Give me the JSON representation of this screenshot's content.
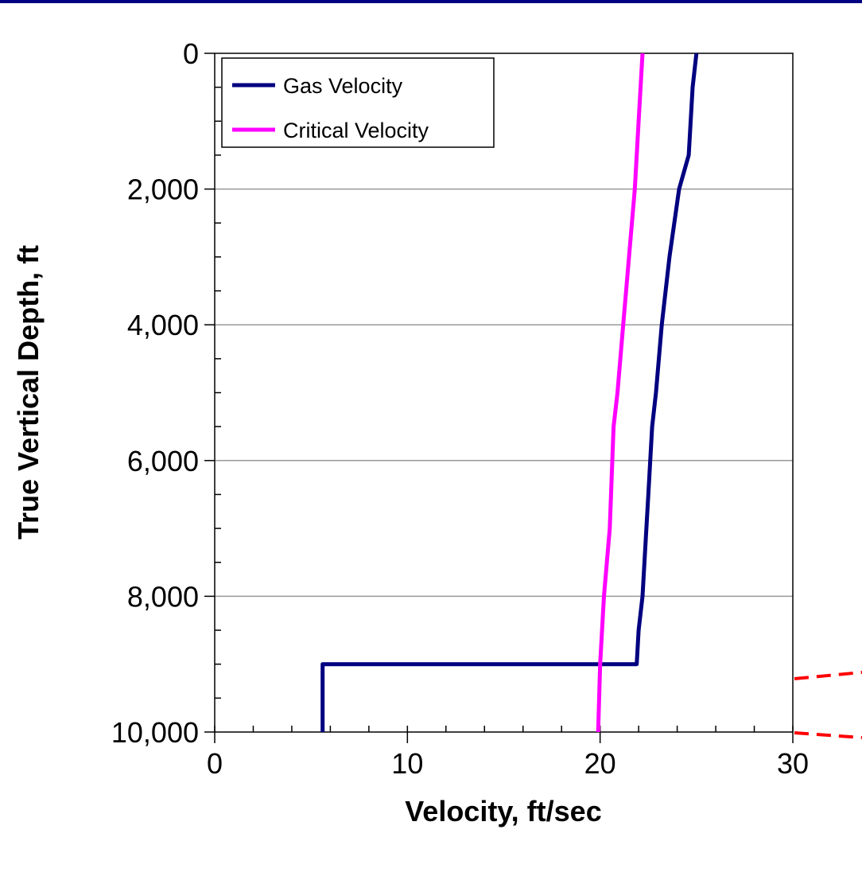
{
  "chart_data": {
    "type": "line",
    "xlabel": "Velocity, ft/sec",
    "ylabel": "True Vertical Depth, ft",
    "xlim": [
      0,
      30
    ],
    "ylim": [
      0,
      10000
    ],
    "y_axis_inverted": true,
    "x_ticks": [
      "0",
      "10",
      "20",
      "30"
    ],
    "x_tick_values": [
      0,
      10,
      20,
      30
    ],
    "y_ticks": [
      "0",
      "2,000",
      "4,000",
      "6,000",
      "8,000",
      "10,000"
    ],
    "y_tick_values": [
      0,
      2000,
      4000,
      6000,
      8000,
      10000
    ],
    "grid": "horizontal",
    "legend_position": "top-left",
    "series": [
      {
        "name": "Gas Velocity",
        "color": "#000080",
        "points": [
          {
            "x": 25.0,
            "y": 0
          },
          {
            "x": 24.8,
            "y": 500
          },
          {
            "x": 24.6,
            "y": 1500
          },
          {
            "x": 24.1,
            "y": 2000
          },
          {
            "x": 23.6,
            "y": 3000
          },
          {
            "x": 23.2,
            "y": 4000
          },
          {
            "x": 22.9,
            "y": 5000
          },
          {
            "x": 22.7,
            "y": 5500
          },
          {
            "x": 22.5,
            "y": 6500
          },
          {
            "x": 22.3,
            "y": 7500
          },
          {
            "x": 22.2,
            "y": 8000
          },
          {
            "x": 22.0,
            "y": 8500
          },
          {
            "x": 21.9,
            "y": 9000
          },
          {
            "x": 5.6,
            "y": 9000
          },
          {
            "x": 5.6,
            "y": 10000
          }
        ]
      },
      {
        "name": "Critical Velocity",
        "color": "#ff00ff",
        "points": [
          {
            "x": 22.2,
            "y": 0
          },
          {
            "x": 22.0,
            "y": 1000
          },
          {
            "x": 21.8,
            "y": 2000
          },
          {
            "x": 21.5,
            "y": 3000
          },
          {
            "x": 21.2,
            "y": 4000
          },
          {
            "x": 20.9,
            "y": 5000
          },
          {
            "x": 20.7,
            "y": 5500
          },
          {
            "x": 20.5,
            "y": 7000
          },
          {
            "x": 20.2,
            "y": 8000
          },
          {
            "x": 20.0,
            "y": 9000
          },
          {
            "x": 19.9,
            "y": 10000
          }
        ]
      }
    ]
  },
  "colors": {
    "top_bar": "#000080",
    "gridline": "#999999",
    "callout_dash": "#ff0000"
  }
}
